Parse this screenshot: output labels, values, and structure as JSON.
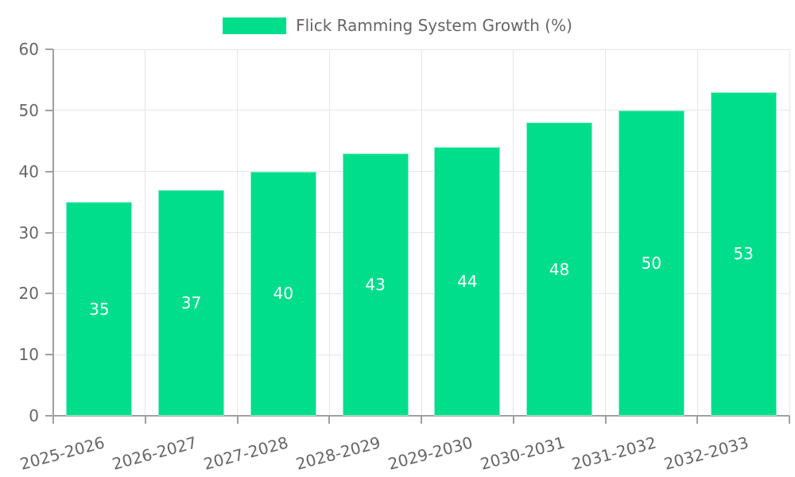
{
  "chart_data": {
    "type": "bar",
    "title": "",
    "legend_label": "Flick Ramming System Growth (%)",
    "legend_position": "top-center",
    "categories": [
      "2025-2026",
      "2026-2027",
      "2027-2028",
      "2028-2029",
      "2029-2030",
      "2030-2031",
      "2031-2032",
      "2032-2033"
    ],
    "values": [
      35,
      37,
      40,
      43,
      44,
      48,
      50,
      53
    ],
    "data_labels": [
      "35",
      "37",
      "40",
      "43",
      "44",
      "48",
      "50",
      "53"
    ],
    "y_ticks": [
      "0",
      "10",
      "20",
      "30",
      "40",
      "50",
      "60"
    ],
    "y_tick_values": [
      0,
      10,
      20,
      30,
      40,
      50,
      60
    ],
    "xlabel": "",
    "ylabel": "",
    "ylim": [
      0,
      60
    ],
    "grid": true,
    "x_label_rotation_deg": -15
  },
  "colors": {
    "bar": "#00DE8C",
    "bar_label": "#FFFFFF",
    "gridline": "#E6E6E6",
    "axis_line": "#A0A0A0",
    "tick_label": "#666666",
    "legend_text": "#666666",
    "background": "#FFFFFF"
  }
}
